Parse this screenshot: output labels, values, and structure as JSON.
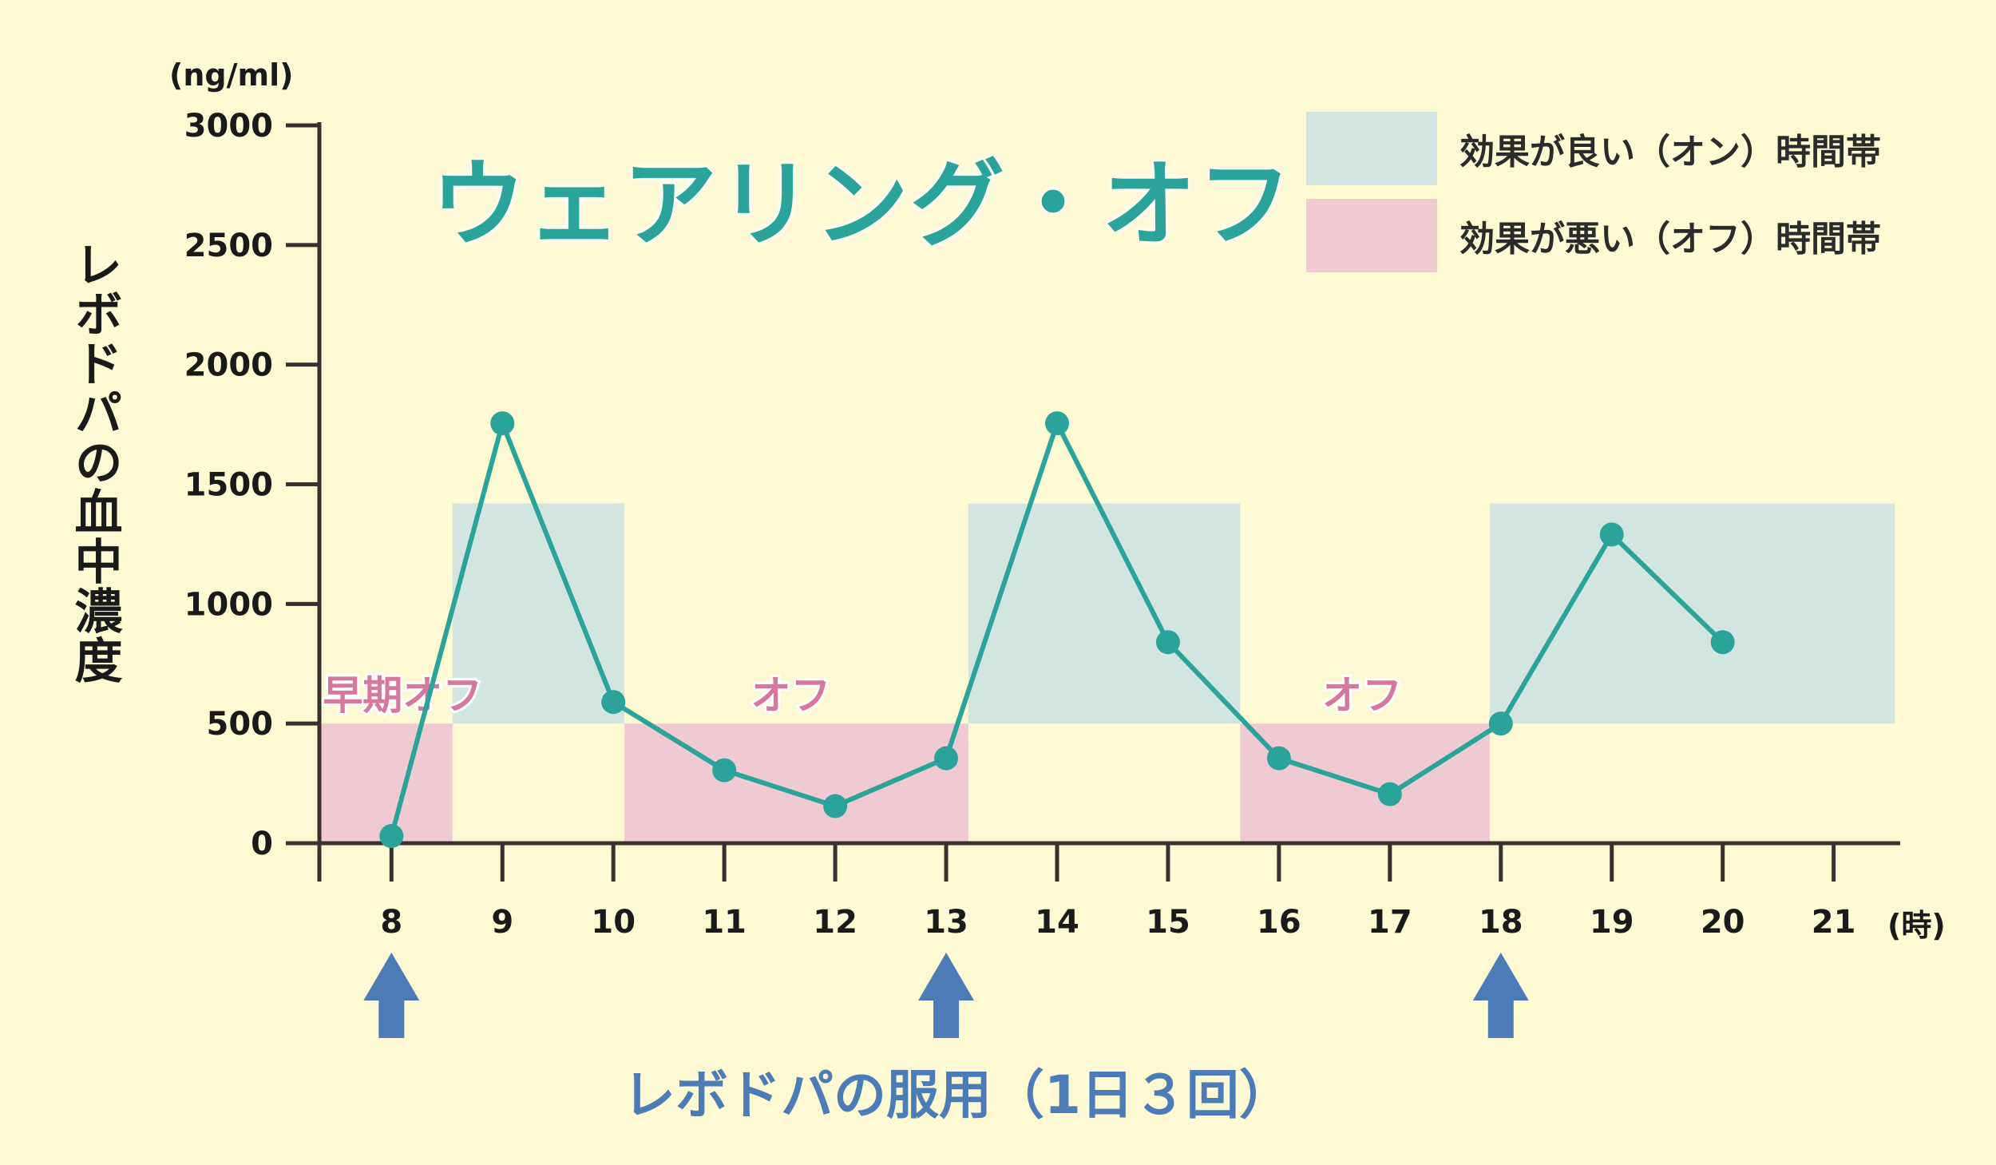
{
  "title": "ウェアリング・オフ",
  "chart_data": {
    "type": "line",
    "title": "ウェアリング・オフ",
    "ylabel": "レボドパの血中濃度",
    "yunit": "(ng/ml)",
    "xunit": "(時)",
    "ylim": [
      0,
      3000
    ],
    "yticks": [
      0,
      500,
      1000,
      1500,
      2000,
      2500,
      3000
    ],
    "xlim": [
      7.35,
      21.6
    ],
    "xticks": [
      8,
      9,
      10,
      11,
      12,
      13,
      14,
      15,
      16,
      17,
      18,
      19,
      20,
      21
    ],
    "x": [
      8,
      9,
      10,
      11,
      12,
      13,
      14,
      15,
      16,
      17,
      18,
      19,
      20
    ],
    "y": [
      30,
      1755,
      590,
      305,
      155,
      355,
      1755,
      840,
      355,
      205,
      500,
      1290,
      840
    ],
    "line_color": "#2aa39b",
    "on_color": "#d2e5e1",
    "off_color": "#f0cad3",
    "on_periods": [
      {
        "x": [
          8.55,
          10.1
        ],
        "y": [
          500,
          1420
        ]
      },
      {
        "x": [
          13.2,
          15.65
        ],
        "y": [
          500,
          1420
        ]
      },
      {
        "x": [
          17.9,
          21.55
        ],
        "y": [
          500,
          1420
        ]
      }
    ],
    "off_periods": [
      {
        "x": [
          7.35,
          8.55
        ],
        "y": [
          0,
          500
        ],
        "label": "早期オフ",
        "label_x": 8.1
      },
      {
        "x": [
          10.1,
          13.2
        ],
        "y": [
          0,
          500
        ],
        "label": "オフ",
        "label_x": 11.6
      },
      {
        "x": [
          15.65,
          17.9
        ],
        "y": [
          0,
          500
        ],
        "label": "オフ",
        "label_x": 16.75
      }
    ],
    "off_label_color": "#d6779d",
    "dose_times": [
      8,
      13,
      18
    ],
    "dose_color": "#4c7cb8",
    "grid": false,
    "legend_position": "top-right"
  },
  "legend": [
    {
      "label": "効果が良い（オン）時間帯",
      "color": "#d2e5e1"
    },
    {
      "label": "効果が悪い（オフ）時間帯",
      "color": "#f0cad3"
    }
  ],
  "dose_label": "レボドパの服用（1日３回）"
}
